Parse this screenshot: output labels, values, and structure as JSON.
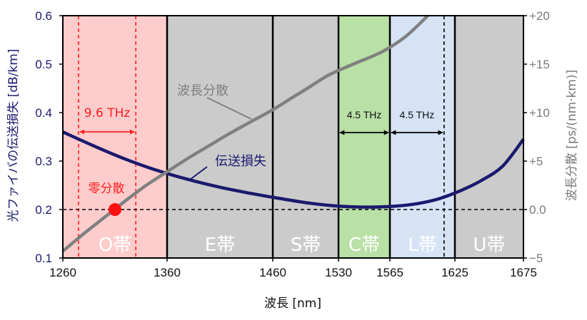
{
  "chart_data": {
    "type": "line",
    "xlabel": "波長 [nm]",
    "ylabel_left": "光ファイバの伝送損失 [dB/km]",
    "ylabel_right": "波長分散 [ps/(nm·km)]",
    "x_range": [
      1260,
      1675
    ],
    "y_left_range": [
      0.1,
      0.6
    ],
    "y_right_range": [
      -5,
      20
    ],
    "x_ticks": [
      1260,
      1360,
      1460,
      1530,
      1565,
      1625,
      1675
    ],
    "x_tick_labels": [
      "1260",
      "1360",
      "1460",
      "1530",
      "1565",
      "1625",
      "1675"
    ],
    "y_left_ticks": [
      0.1,
      0.2,
      0.3,
      0.4,
      0.5,
      0.6
    ],
    "y_left_tick_labels": [
      "0.1",
      "0.2",
      "0.3",
      "0.4",
      "0.5",
      "0.6"
    ],
    "y_right_ticks": [
      -5,
      0,
      5,
      10,
      15,
      20
    ],
    "y_right_tick_labels": [
      "−5",
      "0.0",
      "+5",
      "+10",
      "+15",
      "+20"
    ],
    "bands": [
      {
        "name": "O帯",
        "start": 1260,
        "end": 1360,
        "color": "#ffcccc"
      },
      {
        "name": "E帯",
        "start": 1360,
        "end": 1460,
        "color": "#cbcbcb"
      },
      {
        "name": "S帯",
        "start": 1460,
        "end": 1530,
        "color": "#cbcbcb"
      },
      {
        "name": "C帯",
        "start": 1530,
        "end": 1565,
        "color": "#b9e0a5"
      },
      {
        "name": "L帯",
        "start": 1565,
        "end": 1625,
        "color": "#d5e3f5"
      },
      {
        "name": "U帯",
        "start": 1625,
        "end": 1675,
        "color": "#cbcbcb"
      }
    ],
    "series": [
      {
        "name": "伝送損失",
        "axis": "left",
        "color": "#1a1a6e",
        "x": [
          1260,
          1290,
          1320,
          1350,
          1380,
          1410,
          1440,
          1470,
          1500,
          1530,
          1550,
          1570,
          1590,
          1610,
          1630,
          1645,
          1660,
          1675
        ],
        "y": [
          0.36,
          0.331,
          0.304,
          0.281,
          0.262,
          0.246,
          0.233,
          0.222,
          0.213,
          0.207,
          0.205,
          0.207,
          0.212,
          0.222,
          0.24,
          0.261,
          0.29,
          0.345
        ]
      },
      {
        "name": "波長分散",
        "axis": "right",
        "color": "#808080",
        "x": [
          1260,
          1280,
          1300,
          1320,
          1340,
          1360,
          1380,
          1400,
          1420,
          1440,
          1460,
          1480,
          1500,
          1520,
          1540,
          1560,
          1580,
          1600
        ],
        "y": [
          -4.3,
          -2.5,
          -0.8,
          0.9,
          2.5,
          3.9,
          5.3,
          6.6,
          7.9,
          9.1,
          10.3,
          11.5,
          12.7,
          13.9,
          15.0,
          16.3,
          17.9,
          20
        ]
      }
    ],
    "zero_dispersion": {
      "x": 1310,
      "label": "零分散"
    },
    "guide_lines": [
      1275,
      1330,
      1615
    ],
    "annotations": [
      {
        "text": "9.6 THz",
        "from": 1275,
        "to": 1330
      },
      {
        "text": "4.5 THz",
        "from": 1530,
        "to": 1565
      },
      {
        "text": "4.5 THz",
        "from": 1565,
        "to": 1615
      }
    ],
    "series_labels": {
      "loss": "伝送損失",
      "dispersion": "波長分散"
    }
  }
}
